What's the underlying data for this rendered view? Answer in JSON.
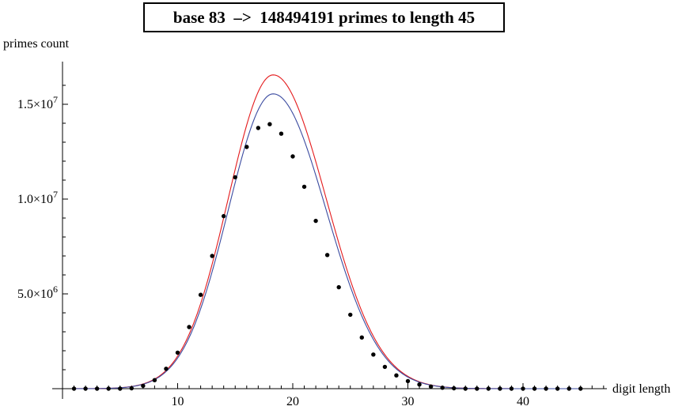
{
  "chart_data": {
    "type": "scatter",
    "title": "base 83  –>  148494191 primes to length 45",
    "xlabel": "digit length",
    "ylabel": "primes count",
    "xlim": [
      0,
      47
    ],
    "ylim": [
      0,
      17500000
    ],
    "x_ticks": [
      {
        "value": 10,
        "label": "10"
      },
      {
        "value": 20,
        "label": "20"
      },
      {
        "value": 30,
        "label": "30"
      },
      {
        "value": 40,
        "label": "40"
      }
    ],
    "y_ticks": [
      {
        "value": 5000000,
        "mantissa": "5.0",
        "exponent": "6"
      },
      {
        "value": 10000000,
        "mantissa": "1.0",
        "exponent": "7"
      },
      {
        "value": 15000000,
        "mantissa": "1.5",
        "exponent": "7"
      }
    ],
    "y_tick_times": "×10",
    "grid": false,
    "series": [
      {
        "type": "scatter",
        "color": "#000000",
        "points": [
          [
            1,
            0
          ],
          [
            2,
            0
          ],
          [
            3,
            0
          ],
          [
            4,
            0
          ],
          [
            5,
            0
          ],
          [
            6,
            20000
          ],
          [
            7,
            150000
          ],
          [
            8,
            450000
          ],
          [
            9,
            1050000
          ],
          [
            10,
            1900000
          ],
          [
            11,
            3250000
          ],
          [
            12,
            4950000
          ],
          [
            13,
            7000000
          ],
          [
            14,
            9100000
          ],
          [
            15,
            11150000
          ],
          [
            16,
            12750000
          ],
          [
            17,
            13750000
          ],
          [
            18,
            13950000
          ],
          [
            19,
            13450000
          ],
          [
            20,
            12250000
          ],
          [
            21,
            10650000
          ],
          [
            22,
            8850000
          ],
          [
            23,
            7050000
          ],
          [
            24,
            5350000
          ],
          [
            25,
            3900000
          ],
          [
            26,
            2700000
          ],
          [
            27,
            1800000
          ],
          [
            28,
            1150000
          ],
          [
            29,
            700000
          ],
          [
            30,
            400000
          ],
          [
            31,
            220000
          ],
          [
            32,
            110000
          ],
          [
            33,
            50000
          ],
          [
            34,
            20000
          ],
          [
            35,
            0
          ],
          [
            36,
            0
          ],
          [
            37,
            0
          ],
          [
            38,
            0
          ],
          [
            39,
            0
          ],
          [
            40,
            0
          ],
          [
            41,
            0
          ],
          [
            42,
            0
          ],
          [
            43,
            0
          ],
          [
            44,
            0
          ],
          [
            45,
            0
          ]
        ]
      },
      {
        "type": "line",
        "color": "#e41a1c",
        "peak_x": 18.3,
        "peak_y": 16550000,
        "width_left": 3.9,
        "width_right": 4.6
      },
      {
        "type": "line",
        "color": "#3b4ba0",
        "peak_x": 18.3,
        "peak_y": 15550000,
        "width_left": 3.9,
        "width_right": 4.6
      }
    ]
  }
}
